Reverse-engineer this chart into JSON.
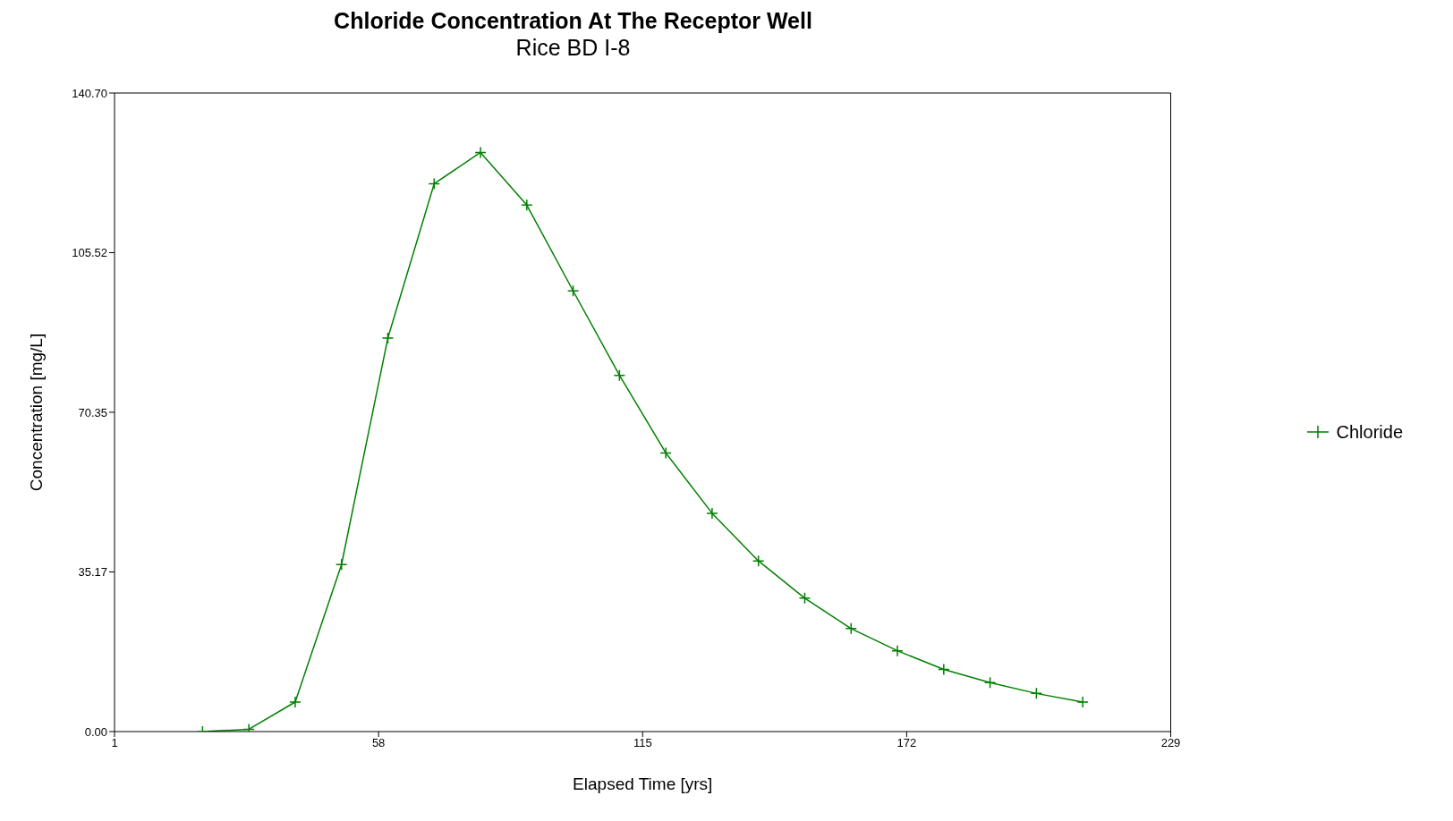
{
  "chart_data": {
    "type": "line",
    "title": "Chloride Concentration At The Receptor Well",
    "subtitle": "Rice BD I-8",
    "xlabel": "Elapsed Time [yrs]",
    "ylabel": "Concentration [mg/L]",
    "x": [
      20,
      30,
      40,
      50,
      60,
      70,
      80,
      90,
      100,
      110,
      120,
      130,
      140,
      150,
      160,
      170,
      180,
      190,
      200,
      210
    ],
    "series": [
      {
        "name": "Chloride",
        "color": "#008000",
        "values": [
          0,
          0.5,
          6.5,
          36.8,
          86.7,
          120.7,
          127.6,
          116.0,
          97.1,
          78.5,
          61.4,
          48.1,
          37.6,
          29.4,
          22.7,
          17.8,
          13.7,
          10.8,
          8.4,
          6.5
        ]
      }
    ],
    "xlim": [
      1,
      229
    ],
    "xticks": [
      1,
      58,
      115,
      172,
      229
    ],
    "ylim": [
      0,
      140.7
    ],
    "yticks": [
      {
        "value": 0,
        "label": "0.00"
      },
      {
        "value": 35.17,
        "label": "35.17"
      },
      {
        "value": 70.35,
        "label": "70.35"
      },
      {
        "value": 105.52,
        "label": "105.52"
      },
      {
        "value": 140.7,
        "label": "140.70"
      }
    ],
    "grid": false,
    "legend": "right",
    "marker": "cross",
    "line_style": "solid"
  }
}
